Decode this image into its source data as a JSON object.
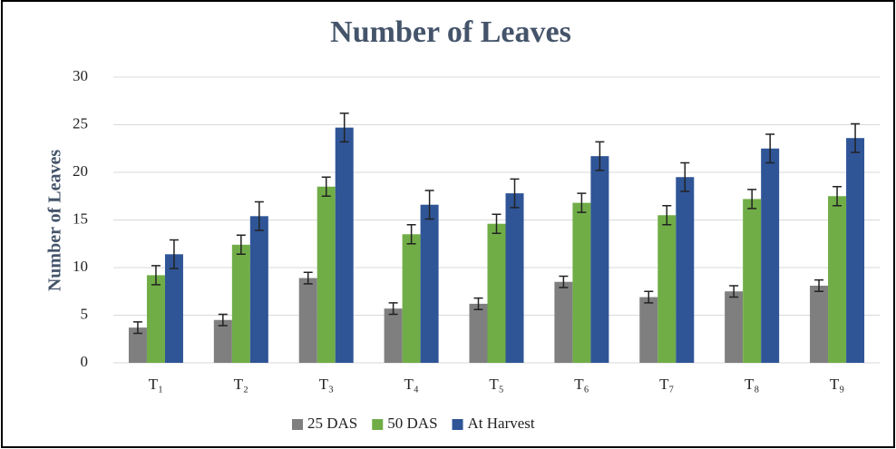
{
  "chart_data": {
    "type": "bar",
    "title": "Number of Leaves",
    "y_label": "Number of Leaves",
    "categories": [
      "T₁",
      "T₂",
      "T₃",
      "T₄",
      "T₅",
      "T₆",
      "T₇",
      "T₈",
      "T₉"
    ],
    "series": [
      {
        "name": "25 DAS",
        "color": "#7f7f7f",
        "values": [
          3.7,
          4.5,
          8.9,
          5.7,
          6.2,
          8.5,
          6.9,
          7.5,
          8.1
        ],
        "errors": [
          0.6,
          0.6,
          0.6,
          0.6,
          0.6,
          0.6,
          0.6,
          0.6,
          0.6
        ]
      },
      {
        "name": "50 DAS",
        "color": "#70ad47",
        "values": [
          9.2,
          12.4,
          18.5,
          13.5,
          14.6,
          16.8,
          15.5,
          17.2,
          17.5
        ],
        "errors": [
          1.0,
          1.0,
          1.0,
          1.0,
          1.0,
          1.0,
          1.0,
          1.0,
          1.0
        ]
      },
      {
        "name": "At Harvest",
        "color": "#2f5597",
        "values": [
          11.4,
          15.4,
          24.7,
          16.6,
          17.8,
          21.7,
          19.5,
          22.5,
          23.6
        ],
        "errors": [
          1.5,
          1.5,
          1.5,
          1.5,
          1.5,
          1.5,
          1.5,
          1.5,
          1.5
        ]
      }
    ],
    "ylim": [
      0,
      30
    ],
    "yticks": [
      0,
      5,
      10,
      15,
      20,
      25,
      30
    ],
    "grid": true,
    "legend": "bottom"
  }
}
